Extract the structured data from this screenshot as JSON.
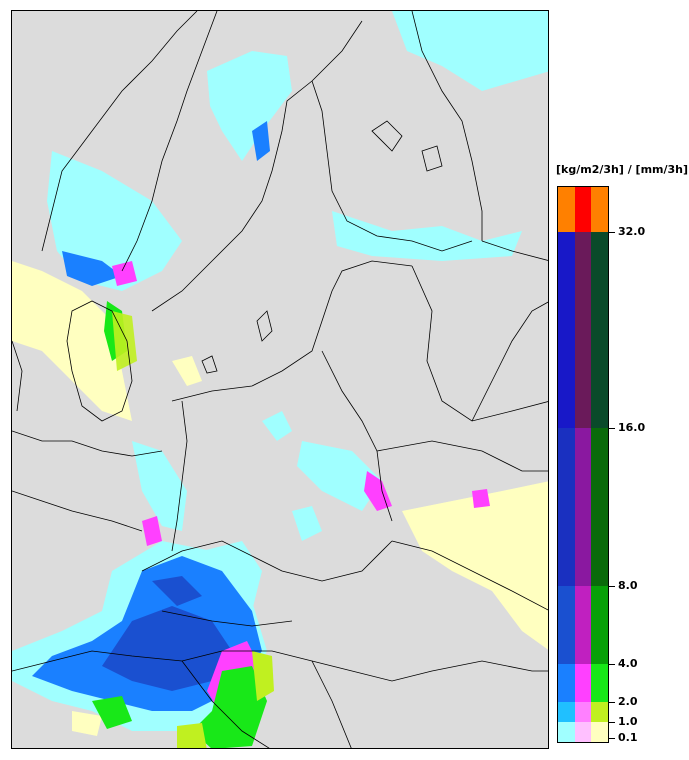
{
  "legend": {
    "unit_label": "[kg/m2/3h] / [mm/3h]",
    "ticks": [
      "32.0",
      "16.0",
      "8.0",
      "4.0",
      "2.0",
      "1.0",
      "0.1"
    ],
    "bands": [
      {
        "from": "32.0",
        "to": "",
        "colors": [
          "#ff8000",
          "#ff0000",
          "#ff8000"
        ]
      },
      {
        "from": "16.0",
        "to": "32.0",
        "colors": [
          "#1818c8",
          "#6a1a5a",
          "#0a4a2a"
        ]
      },
      {
        "from": "8.0",
        "to": "16.0",
        "colors": [
          "#1a30c0",
          "#8a18a0",
          "#0a6a0a"
        ]
      },
      {
        "from": "4.0",
        "to": "8.0",
        "colors": [
          "#1a50d0",
          "#c020c0",
          "#08a008"
        ]
      },
      {
        "from": "2.0",
        "to": "4.0",
        "colors": [
          "#1a80ff",
          "#ff40ff",
          "#18e818"
        ]
      },
      {
        "from": "1.0",
        "to": "2.0",
        "colors": [
          "#20c0ff",
          "#ff80ff",
          "#c0f020"
        ]
      },
      {
        "from": "0.1",
        "to": "1.0",
        "colors": [
          "#a0ffff",
          "#ffc0ff",
          "#ffffc0"
        ]
      }
    ]
  },
  "map": {
    "background_color": "#dcdcdc",
    "border_color": "#000000"
  }
}
